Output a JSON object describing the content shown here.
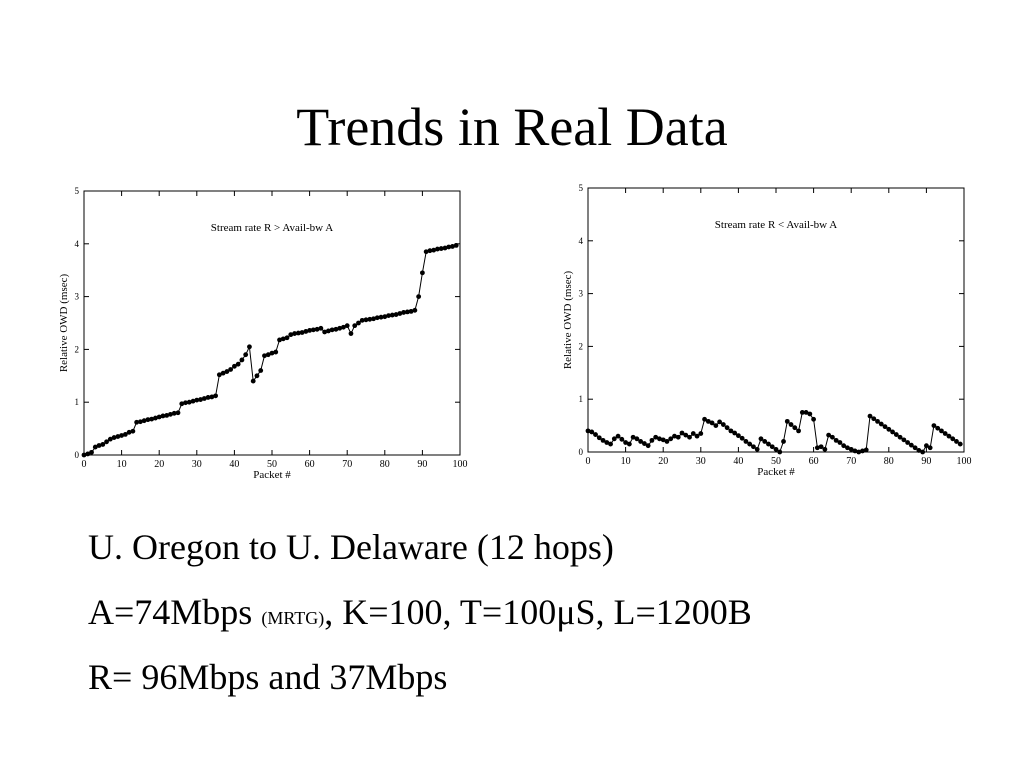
{
  "slide": {
    "title": "Trends in Real Data"
  },
  "chart_data": [
    {
      "type": "line",
      "annotation": "Stream rate R > Avail-bw A",
      "xlabel": "Packet #",
      "ylabel": "Relative OWD (msec)",
      "xlim": [
        0,
        100
      ],
      "ylim": [
        0,
        5
      ],
      "xticks": [
        0,
        10,
        20,
        30,
        40,
        50,
        60,
        70,
        80,
        90,
        100
      ],
      "yticks": [
        0,
        1,
        2,
        3,
        4,
        5
      ],
      "series": [
        {
          "x": [
            0,
            1,
            2,
            3,
            4,
            5,
            6,
            7,
            8,
            9,
            10,
            11,
            12,
            13,
            14,
            15,
            16,
            17,
            18,
            19,
            20,
            21,
            22,
            23,
            24,
            25,
            26,
            27,
            28,
            29,
            30,
            31,
            32,
            33,
            34,
            35,
            36,
            37,
            38,
            39,
            40,
            41,
            42,
            43,
            44,
            45,
            46,
            47,
            48,
            49,
            50,
            51,
            52,
            53,
            54,
            55,
            56,
            57,
            58,
            59,
            60,
            61,
            62,
            63,
            64,
            65,
            66,
            67,
            68,
            69,
            70,
            71,
            72,
            73,
            74,
            75,
            76,
            77,
            78,
            79,
            80,
            81,
            82,
            83,
            84,
            85,
            86,
            87,
            88,
            89,
            90,
            91,
            92,
            93,
            94,
            95,
            96,
            97,
            98,
            99
          ],
          "y": [
            0,
            0.02,
            0.05,
            0.15,
            0.18,
            0.2,
            0.25,
            0.3,
            0.33,
            0.35,
            0.37,
            0.39,
            0.43,
            0.45,
            0.62,
            0.63,
            0.65,
            0.67,
            0.68,
            0.7,
            0.72,
            0.74,
            0.75,
            0.77,
            0.79,
            0.8,
            0.97,
            0.99,
            1.0,
            1.02,
            1.04,
            1.05,
            1.07,
            1.09,
            1.1,
            1.12,
            1.52,
            1.55,
            1.58,
            1.62,
            1.68,
            1.72,
            1.8,
            1.9,
            2.05,
            1.4,
            1.5,
            1.6,
            1.88,
            1.9,
            1.93,
            1.95,
            2.18,
            2.2,
            2.22,
            2.28,
            2.3,
            2.31,
            2.32,
            2.34,
            2.36,
            2.37,
            2.38,
            2.4,
            2.33,
            2.35,
            2.37,
            2.38,
            2.4,
            2.42,
            2.45,
            2.3,
            2.45,
            2.5,
            2.55,
            2.56,
            2.57,
            2.58,
            2.6,
            2.61,
            2.62,
            2.64,
            2.65,
            2.66,
            2.68,
            2.7,
            2.71,
            2.72,
            2.74,
            3.0,
            3.45,
            3.85,
            3.87,
            3.88,
            3.9,
            3.91,
            3.92,
            3.94,
            3.95,
            3.97
          ]
        }
      ]
    },
    {
      "type": "line",
      "annotation": "Stream rate R < Avail-bw A",
      "xlabel": "Packet #",
      "ylabel": "Relative OWD (msec)",
      "xlim": [
        0,
        100
      ],
      "ylim": [
        0,
        5
      ],
      "xticks": [
        0,
        10,
        20,
        30,
        40,
        50,
        60,
        70,
        80,
        90,
        100
      ],
      "yticks": [
        0,
        1,
        2,
        3,
        4,
        5
      ],
      "series": [
        {
          "x": [
            0,
            1,
            2,
            3,
            4,
            5,
            6,
            7,
            8,
            9,
            10,
            11,
            12,
            13,
            14,
            15,
            16,
            17,
            18,
            19,
            20,
            21,
            22,
            23,
            24,
            25,
            26,
            27,
            28,
            29,
            30,
            31,
            32,
            33,
            34,
            35,
            36,
            37,
            38,
            39,
            40,
            41,
            42,
            43,
            44,
            45,
            46,
            47,
            48,
            49,
            50,
            51,
            52,
            53,
            54,
            55,
            56,
            57,
            58,
            59,
            60,
            61,
            62,
            63,
            64,
            65,
            66,
            67,
            68,
            69,
            70,
            71,
            72,
            73,
            74,
            75,
            76,
            77,
            78,
            79,
            80,
            81,
            82,
            83,
            84,
            85,
            86,
            87,
            88,
            89,
            90,
            91,
            92,
            93,
            94,
            95,
            96,
            97,
            98,
            99
          ],
          "y": [
            0.4,
            0.38,
            0.33,
            0.27,
            0.22,
            0.18,
            0.15,
            0.25,
            0.3,
            0.24,
            0.18,
            0.15,
            0.28,
            0.25,
            0.2,
            0.16,
            0.12,
            0.22,
            0.28,
            0.25,
            0.23,
            0.2,
            0.25,
            0.3,
            0.28,
            0.36,
            0.32,
            0.28,
            0.35,
            0.3,
            0.35,
            0.62,
            0.58,
            0.55,
            0.5,
            0.57,
            0.52,
            0.46,
            0.4,
            0.36,
            0.31,
            0.26,
            0.2,
            0.15,
            0.1,
            0.05,
            0.25,
            0.2,
            0.15,
            0.1,
            0.05,
            0.0,
            0.2,
            0.58,
            0.52,
            0.46,
            0.4,
            0.75,
            0.75,
            0.72,
            0.62,
            0.08,
            0.1,
            0.05,
            0.32,
            0.28,
            0.22,
            0.18,
            0.12,
            0.08,
            0.05,
            0.02,
            0.0,
            0.02,
            0.04,
            0.68,
            0.63,
            0.58,
            0.53,
            0.48,
            0.43,
            0.38,
            0.33,
            0.28,
            0.23,
            0.18,
            0.13,
            0.08,
            0.03,
            0.0,
            0.12,
            0.08,
            0.5,
            0.45,
            0.4,
            0.35,
            0.3,
            0.25,
            0.2,
            0.15
          ]
        }
      ]
    }
  ],
  "bullets": {
    "line1": "U. Oregon to U. Delaware (12 hops)",
    "line2_a": "A=74Mbps ",
    "line2_small": "(MRTG)",
    "line2_b": ", K=100, T=100μS, L=1200B",
    "line3": "R= 96Mbps and 37Mbps"
  }
}
